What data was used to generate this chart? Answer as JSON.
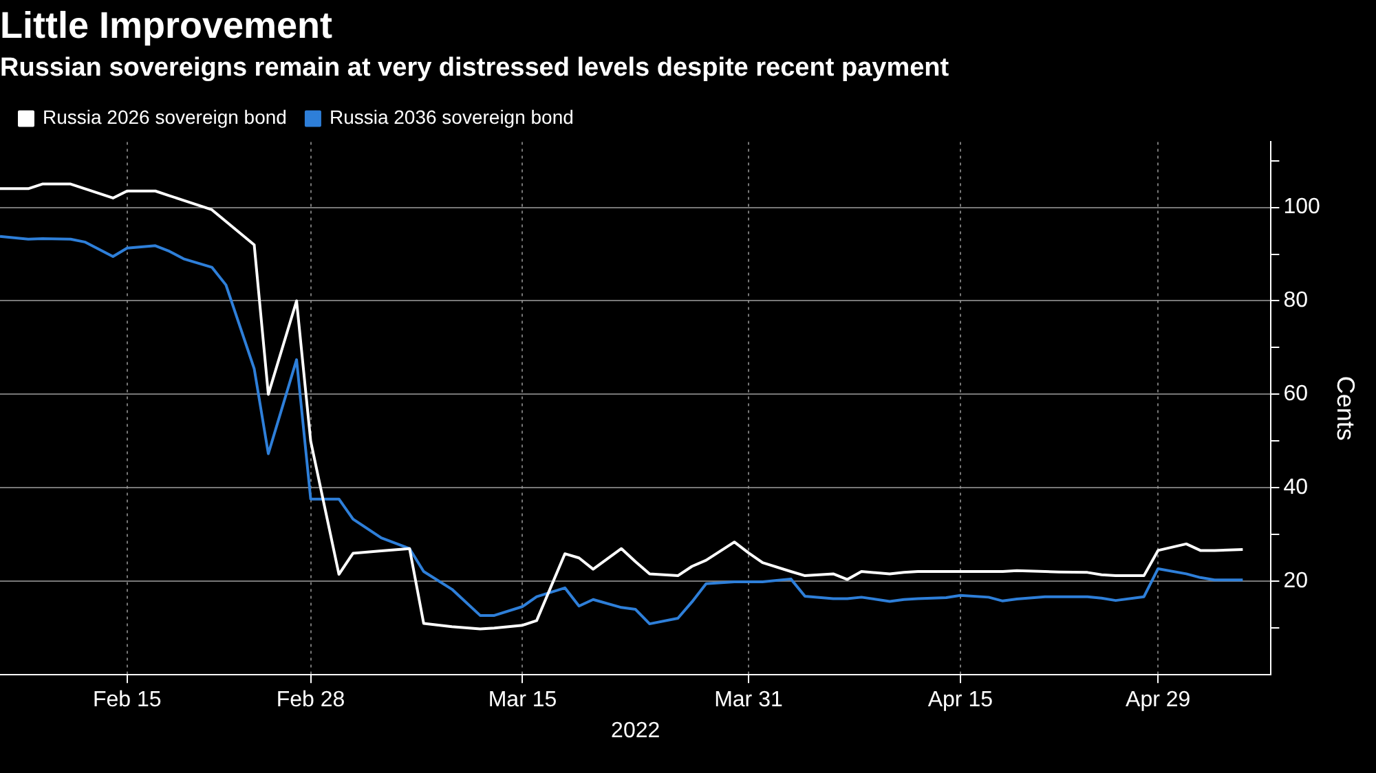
{
  "chart_data": {
    "type": "line",
    "title": "Little Improvement",
    "subtitle": "Russian sovereigns remain at very distressed levels despite recent payment",
    "xlabel": "2022",
    "ylabel": "Cents",
    "x": [
      "2022-02-06",
      "2022-02-08",
      "2022-02-09",
      "2022-02-11",
      "2022-02-12",
      "2022-02-14",
      "2022-02-15",
      "2022-02-17",
      "2022-02-18",
      "2022-02-19",
      "2022-02-21",
      "2022-02-22",
      "2022-02-24",
      "2022-02-25",
      "2022-02-27",
      "2022-02-28",
      "2022-03-02",
      "2022-03-03",
      "2022-03-05",
      "2022-03-07",
      "2022-03-08",
      "2022-03-10",
      "2022-03-12",
      "2022-03-13",
      "2022-03-15",
      "2022-03-16",
      "2022-03-18",
      "2022-03-19",
      "2022-03-20",
      "2022-03-22",
      "2022-03-23",
      "2022-03-24",
      "2022-03-26",
      "2022-03-27",
      "2022-03-28",
      "2022-03-30",
      "2022-03-31",
      "2022-04-01",
      "2022-04-03",
      "2022-04-04",
      "2022-04-06",
      "2022-04-07",
      "2022-04-08",
      "2022-04-10",
      "2022-04-11",
      "2022-04-12",
      "2022-04-14",
      "2022-04-15",
      "2022-04-17",
      "2022-04-18",
      "2022-04-19",
      "2022-04-21",
      "2022-04-22",
      "2022-04-24",
      "2022-04-25",
      "2022-04-26",
      "2022-04-28",
      "2022-04-29",
      "2022-05-01",
      "2022-05-02",
      "2022-05-03",
      "2022-05-05"
    ],
    "series": [
      {
        "name": "Russia 2026 sovereign bond",
        "color": "#ffffff",
        "values": [
          104,
          104,
          105,
          105,
          104,
          102,
          103.5,
          103.5,
          102.5,
          101.5,
          99.5,
          97,
          92,
          60,
          80,
          50,
          21.5,
          26,
          26.5,
          27,
          11,
          10.3,
          9.8,
          10,
          10.6,
          11.6,
          25.9,
          25,
          22.6,
          27,
          24.2,
          21.6,
          21.2,
          23.2,
          24.5,
          28.4,
          26.1,
          24,
          22.1,
          21.2,
          21.6,
          20.4,
          22.1,
          21.6,
          21.9,
          22.1,
          22.1,
          22.1,
          22.1,
          22.1,
          22.3,
          22.1,
          22,
          21.9,
          21.4,
          21.2,
          21.2,
          26.6,
          28,
          26.6,
          26.6,
          26.8
        ]
      },
      {
        "name": "Russia 2036 sovereign bond",
        "color": "#2e7fd9",
        "values": [
          93.8,
          93.2,
          93.3,
          93.2,
          92.6,
          89.5,
          91.3,
          91.8,
          90.6,
          89,
          87.2,
          83.4,
          65.5,
          47.3,
          67.4,
          37.6,
          37.6,
          33.3,
          29.3,
          27,
          22.1,
          18.3,
          12.7,
          12.7,
          14.6,
          16.7,
          18.6,
          14.7,
          16.1,
          14.4,
          14,
          10.9,
          12.1,
          15.6,
          19.5,
          19.9,
          19.9,
          19.9,
          20.5,
          16.8,
          16.3,
          16.3,
          16.6,
          15.7,
          16.1,
          16.3,
          16.5,
          17,
          16.6,
          15.8,
          16.2,
          16.7,
          16.7,
          16.7,
          16.4,
          15.9,
          16.7,
          22.7,
          21.6,
          20.8,
          20.3,
          20.3
        ]
      }
    ],
    "xlim": [
      "2022-02-06",
      "2022-05-07"
    ],
    "xticks": [
      {
        "value": "2022-02-15",
        "label": "Feb 15"
      },
      {
        "value": "2022-02-28",
        "label": "Feb 28"
      },
      {
        "value": "2022-03-15",
        "label": "Mar 15"
      },
      {
        "value": "2022-03-31",
        "label": "Mar 31"
      },
      {
        "value": "2022-04-15",
        "label": "Apr 15"
      },
      {
        "value": "2022-04-29",
        "label": "Apr 29"
      }
    ],
    "ylim": [
      0,
      114
    ],
    "yticks": [
      {
        "value": 10,
        "label": null
      },
      20,
      {
        "value": 30,
        "label": null
      },
      40,
      {
        "value": 50,
        "label": null
      },
      60,
      {
        "value": 70,
        "label": null
      },
      80,
      {
        "value": 90,
        "label": null
      },
      100,
      {
        "value": 110,
        "label": null
      }
    ],
    "grid": true,
    "legend": "top left",
    "marker": "none",
    "line_style": "solid"
  }
}
